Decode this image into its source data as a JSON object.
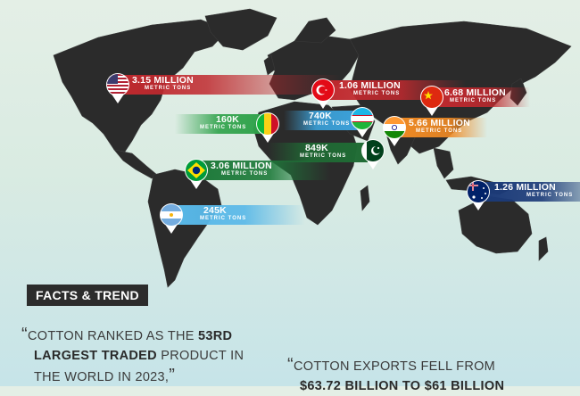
{
  "countries": [
    {
      "id": "usa",
      "flag": "usa-flag",
      "value": "3.15 MILLION",
      "unit": "METRIC TONS",
      "band_color": "#c0292e"
    },
    {
      "id": "turkey",
      "flag": "turkey-flag",
      "value": "1.06 MILLION",
      "unit": "METRIC TONS",
      "band_color": "#c0292e"
    },
    {
      "id": "china",
      "flag": "china-flag",
      "value": "6.68 MILLION",
      "unit": "METRIC TONS",
      "band_color": "#c0292e"
    },
    {
      "id": "mali",
      "flag": "mali-flag",
      "value": "160K",
      "unit": "METRIC TONS",
      "band_color": "#2fa24a"
    },
    {
      "id": "uzbekistan",
      "flag": "uzbekistan-flag",
      "value": "740K",
      "unit": "METRIC TONS",
      "band_color": "#3ca3dc"
    },
    {
      "id": "india",
      "flag": "india-flag",
      "value": "5.66 MILLION",
      "unit": "METRIC TONS",
      "band_color": "#f08a24"
    },
    {
      "id": "pakistan",
      "flag": "pakistan-flag",
      "value": "849K",
      "unit": "METRIC TONS",
      "band_color": "#1f6b34"
    },
    {
      "id": "brazil",
      "flag": "brazil-flag",
      "value": "3.06 MILLION",
      "unit": "METRIC TONS",
      "band_color": "#1e7a3a"
    },
    {
      "id": "argentina",
      "flag": "argentina-flag",
      "value": "245K",
      "unit": "METRIC TONS",
      "band_color": "#58b8e8"
    },
    {
      "id": "australia",
      "flag": "australia-flag",
      "value": "1.26 MILLION",
      "unit": "METRIC TONS",
      "band_color": "#1b3a78"
    }
  ],
  "facts": {
    "heading": "FACTS & TREND",
    "quote1": {
      "open": "“",
      "a": "COTTON RANKED AS THE ",
      "b": "53RD",
      "c": "LARGEST TRADED",
      "d": " PRODUCT IN",
      "e": "THE WORLD IN 2023,",
      "close": "”"
    },
    "quote2": {
      "open": "“",
      "a": "COTTON EXPORTS FELL FROM",
      "b": "$63.72 BILLION TO $61 BILLION"
    }
  }
}
